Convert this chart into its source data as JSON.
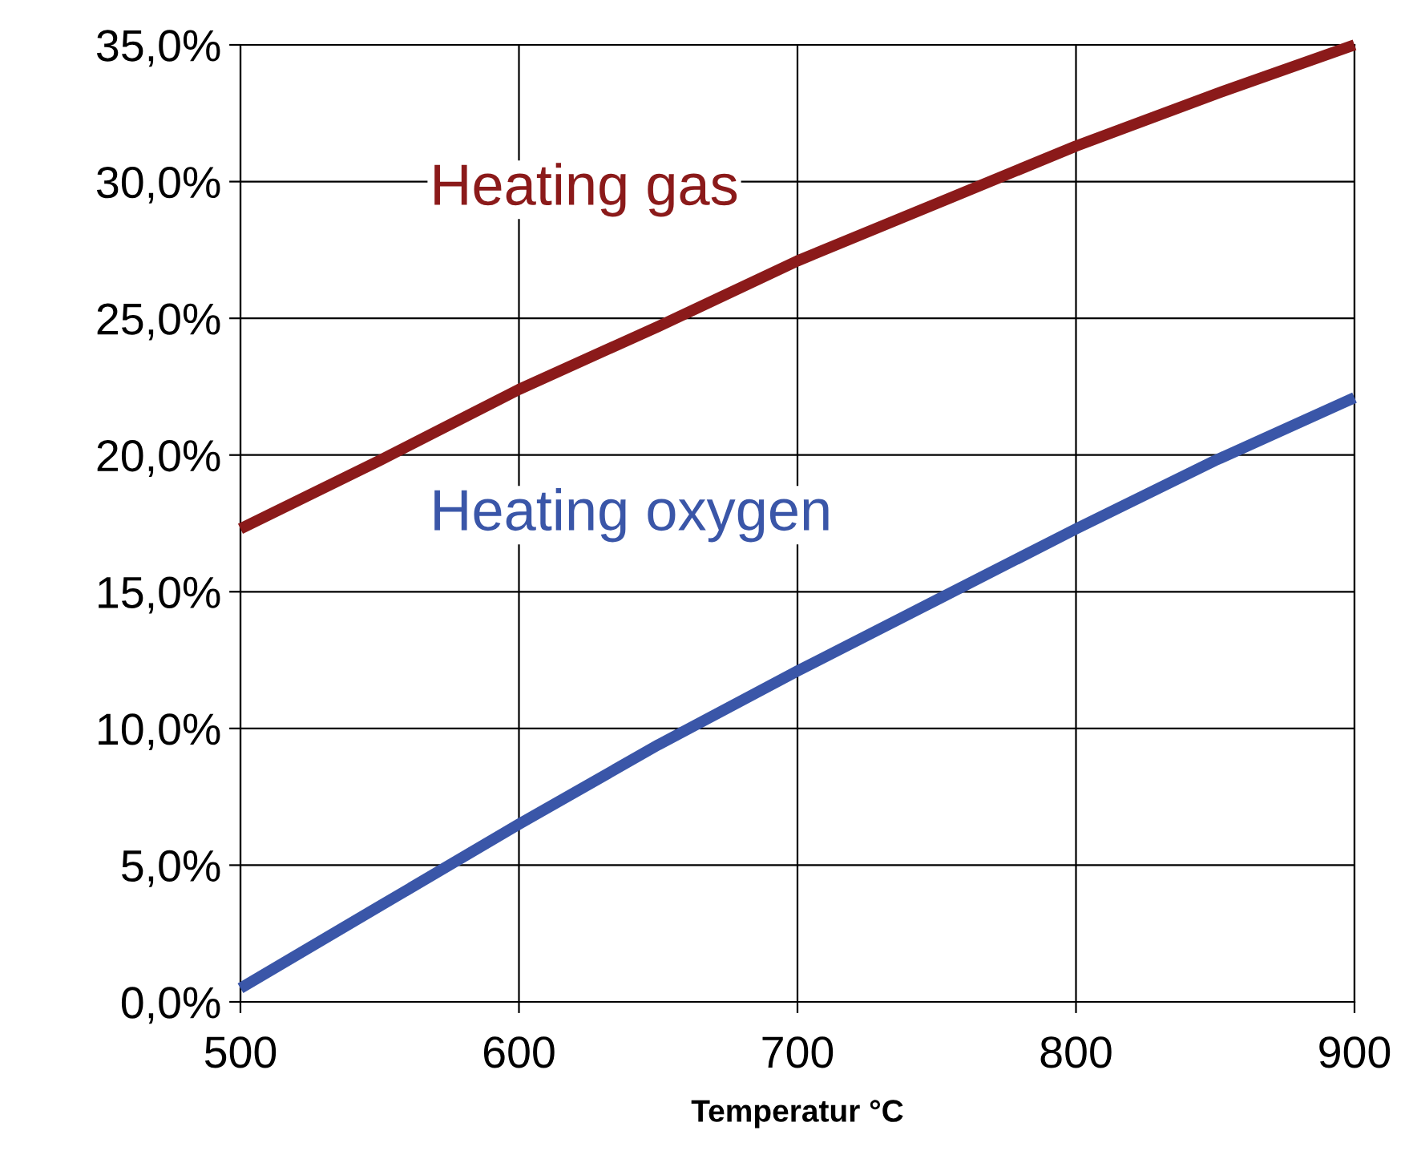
{
  "chart_data": {
    "type": "line",
    "xlabel": "Temperatur °C",
    "x": [
      500,
      550,
      600,
      650,
      700,
      750,
      800,
      850,
      900
    ],
    "series": [
      {
        "name": "Heating gas",
        "color": "#8b1a1a",
        "values": [
          17.3,
          19.8,
          22.4,
          24.7,
          27.1,
          29.2,
          31.3,
          33.2,
          35.0
        ]
      },
      {
        "name": "Heating oxygen",
        "color": "#3a56a8",
        "values": [
          0.5,
          3.5,
          6.5,
          9.4,
          12.1,
          14.7,
          17.3,
          19.8,
          22.1
        ]
      }
    ],
    "xlim": [
      500,
      900
    ],
    "xticks": [
      500,
      600,
      700,
      800,
      900
    ],
    "ylim": [
      0,
      35
    ],
    "yticks": [
      {
        "value": 0,
        "label": "0,0%"
      },
      {
        "value": 5,
        "label": "5,0%"
      },
      {
        "value": 10,
        "label": "10,0%"
      },
      {
        "value": 15,
        "label": "15,0%"
      },
      {
        "value": 20,
        "label": "20,0%"
      },
      {
        "value": 25,
        "label": "25,0%"
      },
      {
        "value": 30,
        "label": "30,0%"
      },
      {
        "value": 35,
        "label": "35,0%"
      }
    ],
    "grid": true,
    "legend": false,
    "marker": "none",
    "line_style": "solid"
  }
}
